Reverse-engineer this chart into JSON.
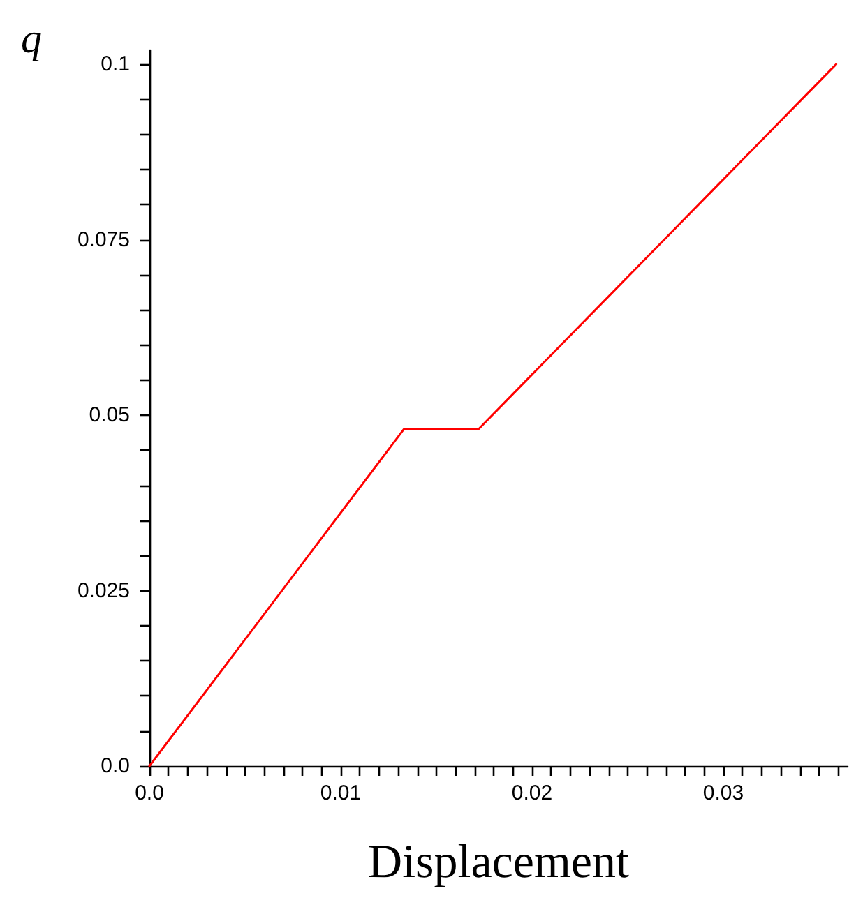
{
  "chart_data": {
    "type": "line",
    "title": "q",
    "xlabel": "Displacement",
    "x": [
      0,
      0.0133,
      0.0172,
      0.0359
    ],
    "series": [
      {
        "color": "#ff0000",
        "values": [
          0,
          0.048,
          0.048,
          0.1
        ]
      }
    ],
    "xlim": [
      0,
      0.0365
    ],
    "ylim": [
      0,
      0.102
    ],
    "xticks": [
      {
        "value": 0,
        "label": "0.0"
      },
      {
        "value": 0.001,
        "label": null
      },
      {
        "value": 0.002,
        "label": null
      },
      {
        "value": 0.003,
        "label": null
      },
      {
        "value": 0.004,
        "label": null
      },
      {
        "value": 0.005,
        "label": null
      },
      {
        "value": 0.006,
        "label": null
      },
      {
        "value": 0.007,
        "label": null
      },
      {
        "value": 0.008,
        "label": null
      },
      {
        "value": 0.009,
        "label": null
      },
      0.01,
      {
        "value": 0.011,
        "label": null
      },
      {
        "value": 0.012,
        "label": null
      },
      {
        "value": 0.013,
        "label": null
      },
      {
        "value": 0.014,
        "label": null
      },
      {
        "value": 0.015,
        "label": null
      },
      {
        "value": 0.016,
        "label": null
      },
      {
        "value": 0.017,
        "label": null
      },
      {
        "value": 0.018,
        "label": null
      },
      {
        "value": 0.019,
        "label": null
      },
      0.02,
      {
        "value": 0.021,
        "label": null
      },
      {
        "value": 0.022,
        "label": null
      },
      {
        "value": 0.023,
        "label": null
      },
      {
        "value": 0.024,
        "label": null
      },
      {
        "value": 0.025,
        "label": null
      },
      {
        "value": 0.026,
        "label": null
      },
      {
        "value": 0.027,
        "label": null
      },
      {
        "value": 0.028,
        "label": null
      },
      {
        "value": 0.029,
        "label": null
      },
      0.03,
      {
        "value": 0.031,
        "label": null
      },
      {
        "value": 0.032,
        "label": null
      },
      {
        "value": 0.033,
        "label": null
      },
      {
        "value": 0.034,
        "label": null
      },
      {
        "value": 0.035,
        "label": null
      },
      {
        "value": 0.036,
        "label": null
      }
    ],
    "yticks": [
      {
        "value": 0,
        "label": "0.0"
      },
      {
        "value": 0.005,
        "label": null
      },
      {
        "value": 0.01,
        "label": null
      },
      {
        "value": 0.015,
        "label": null
      },
      {
        "value": 0.02,
        "label": null
      },
      0.025,
      {
        "value": 0.03,
        "label": null
      },
      {
        "value": 0.035,
        "label": null
      },
      {
        "value": 0.04,
        "label": null
      },
      {
        "value": 0.045,
        "label": null
      },
      0.05,
      {
        "value": 0.055,
        "label": null
      },
      {
        "value": 0.06,
        "label": null
      },
      {
        "value": 0.065,
        "label": null
      },
      {
        "value": 0.07,
        "label": null
      },
      0.075,
      {
        "value": 0.08,
        "label": null
      },
      {
        "value": 0.085,
        "label": null
      },
      {
        "value": 0.09,
        "label": null
      },
      {
        "value": 0.095,
        "label": null
      },
      0.1
    ],
    "grid": false,
    "marker": "none",
    "line_style": "solid"
  }
}
